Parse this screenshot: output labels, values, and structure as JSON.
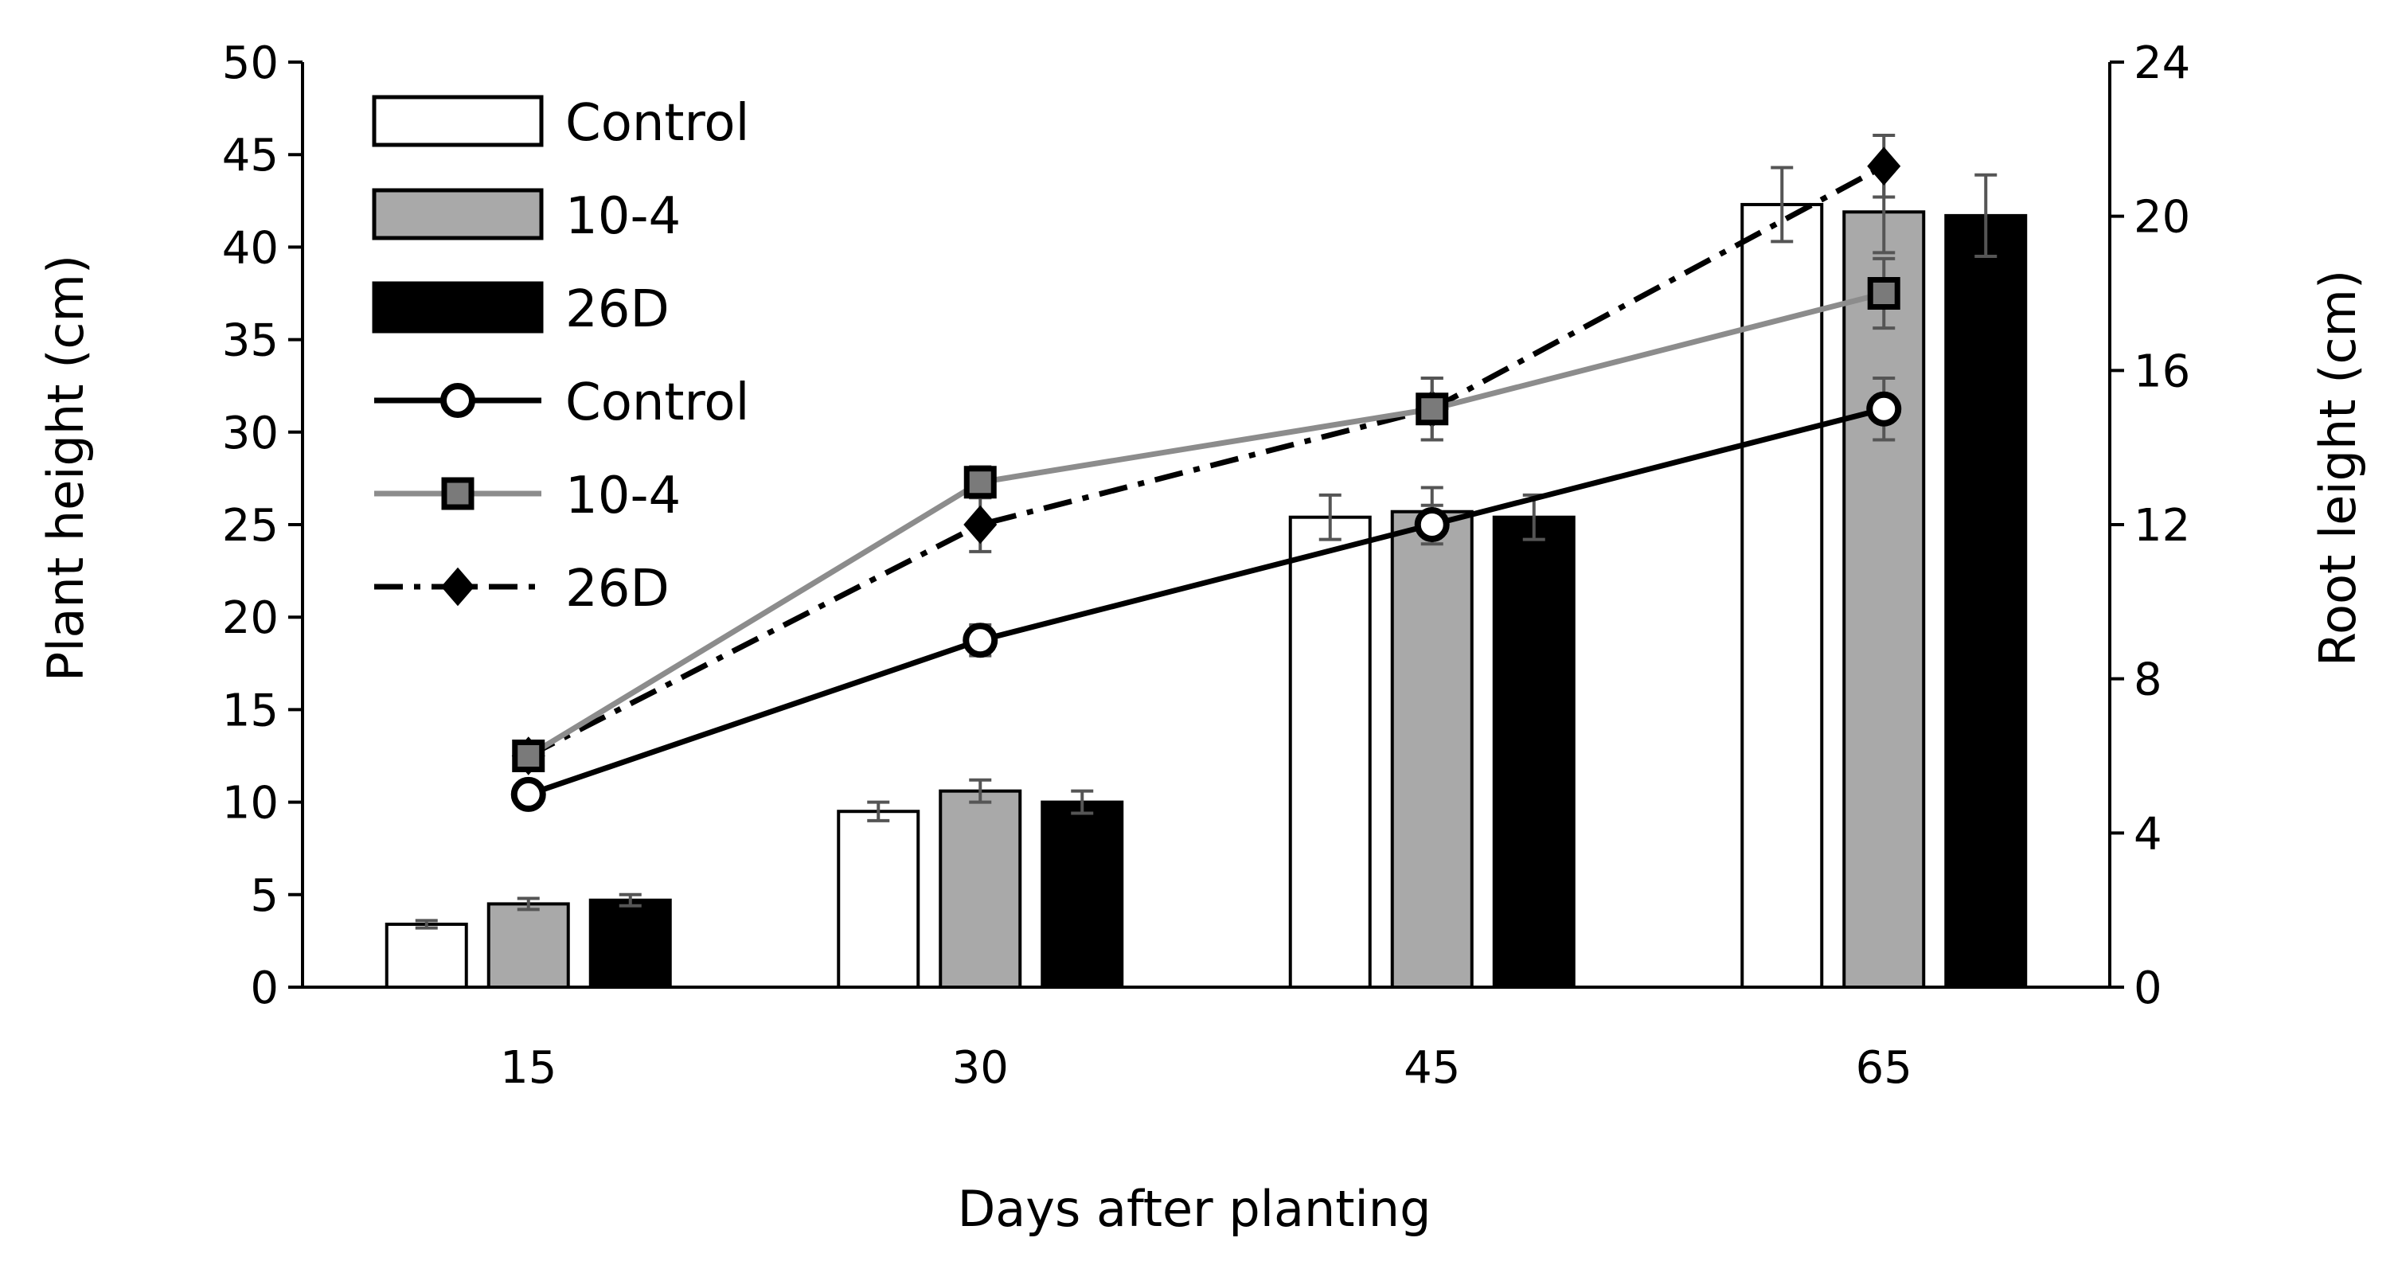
{
  "chart_data": {
    "type": "bar+line",
    "xlabel": "Days after planting",
    "ylabel_left": "Plant height (cm)",
    "ylabel_right": "Root leight (cm)",
    "categories": [
      "15",
      "30",
      "45",
      "65"
    ],
    "y_left": {
      "min": 0,
      "max": 50,
      "step": 5,
      "ticks": [
        "0",
        "5",
        "10",
        "15",
        "20",
        "25",
        "30",
        "35",
        "40",
        "45",
        "50"
      ]
    },
    "y_right": {
      "min": 0,
      "max": 24,
      "step": 4,
      "ticks": [
        "0",
        "4",
        "8",
        "12",
        "16",
        "20",
        "24"
      ]
    },
    "grid": false,
    "legend_position": "top-left",
    "bar_series": [
      {
        "name": "Control",
        "axis": "left",
        "fill": "#ffffff",
        "values": [
          3.4,
          9.5,
          25.4,
          42.3
        ],
        "errors": [
          0.2,
          0.5,
          1.2,
          2.0
        ]
      },
      {
        "name": "10-4",
        "axis": "left",
        "fill": "#a9a9a9",
        "values": [
          4.5,
          10.6,
          25.7,
          41.9
        ],
        "errors": [
          0.3,
          0.6,
          1.3,
          2.2
        ]
      },
      {
        "name": "26D",
        "axis": "left",
        "fill": "#000000",
        "values": [
          4.7,
          10.0,
          25.4,
          41.7
        ],
        "errors": [
          0.3,
          0.6,
          1.2,
          2.2
        ]
      }
    ],
    "line_series": [
      {
        "name": "Control",
        "axis": "right",
        "color": "#000000",
        "dash": "solid",
        "marker": "circle-open",
        "values": [
          5.0,
          9.0,
          12.0,
          15.0
        ],
        "errors": [
          0.3,
          0.4,
          0.5,
          0.8
        ]
      },
      {
        "name": "10-4",
        "axis": "right",
        "color": "#8c8c8c",
        "dash": "solid",
        "marker": "square-gray",
        "values": [
          6.0,
          13.1,
          15.0,
          18.0
        ],
        "errors": [
          0.3,
          0.4,
          0.8,
          0.9
        ]
      },
      {
        "name": "26D",
        "axis": "right",
        "color": "#000000",
        "dash": "dashdot",
        "marker": "diamond-black",
        "values": [
          6.0,
          12.0,
          15.0,
          21.3
        ],
        "errors": [
          0.3,
          0.7,
          0.8,
          0.8
        ]
      }
    ],
    "colors": {
      "axis": "#000000",
      "error_bar": "#555555",
      "bar_outline": "#000000"
    }
  }
}
